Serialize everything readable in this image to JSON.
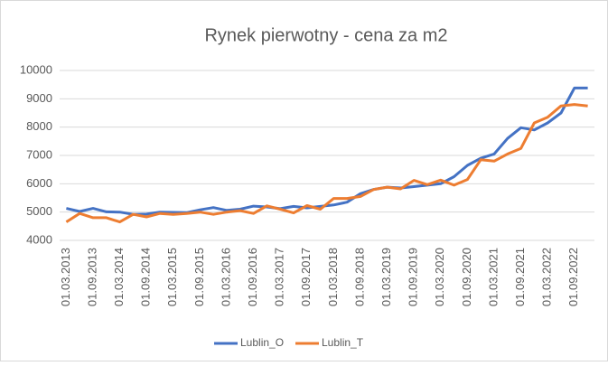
{
  "chart_data": {
    "type": "line",
    "title": "Rynek pierwotny - cena za m2",
    "categories": [
      "01.03.2013",
      null,
      "01.09.2013",
      null,
      "01.03.2014",
      null,
      "01.09.2014",
      null,
      "01.03.2015",
      null,
      "01.09.2015",
      null,
      "01.03.2016",
      null,
      "01.09.2016",
      null,
      "01.03.2017",
      null,
      "01.09.2017",
      null,
      "01.03.2018",
      null,
      "01.09.2018",
      null,
      "01.03.2019",
      null,
      "01.09.2019",
      null,
      "01.03.2020",
      null,
      "01.09.2020",
      null,
      "01.03.2021",
      null,
      "01.09.2021",
      null,
      "01.03.2022",
      null,
      "01.09.2022",
      null
    ],
    "series": [
      {
        "name": "Lublin_O",
        "color": "#4472c4",
        "values": [
          5130,
          5020,
          5130,
          5010,
          5000,
          4920,
          4930,
          5000,
          4990,
          4980,
          5080,
          5160,
          5060,
          5100,
          5210,
          5180,
          5120,
          5200,
          5150,
          5200,
          5250,
          5350,
          5650,
          5800,
          5880,
          5850,
          5900,
          5950,
          6000,
          6250,
          6650,
          6900,
          7050,
          7600,
          7980,
          7900,
          8150,
          8500,
          9380,
          9380
        ]
      },
      {
        "name": "Lublin_T",
        "color": "#ed7d31",
        "values": [
          4650,
          4950,
          4800,
          4800,
          4650,
          4920,
          4830,
          4950,
          4920,
          4950,
          5000,
          4920,
          5000,
          5050,
          4950,
          5220,
          5100,
          4970,
          5230,
          5100,
          5480,
          5480,
          5550,
          5800,
          5880,
          5820,
          6120,
          5970,
          6130,
          5950,
          6150,
          6850,
          6800,
          7050,
          7250,
          8150,
          8350,
          8750,
          8800,
          8750
        ]
      }
    ],
    "ylim": [
      4000,
      10000
    ],
    "yticks": [
      4000,
      5000,
      6000,
      7000,
      8000,
      9000,
      10000
    ],
    "grid": true,
    "legend": "bottom"
  }
}
